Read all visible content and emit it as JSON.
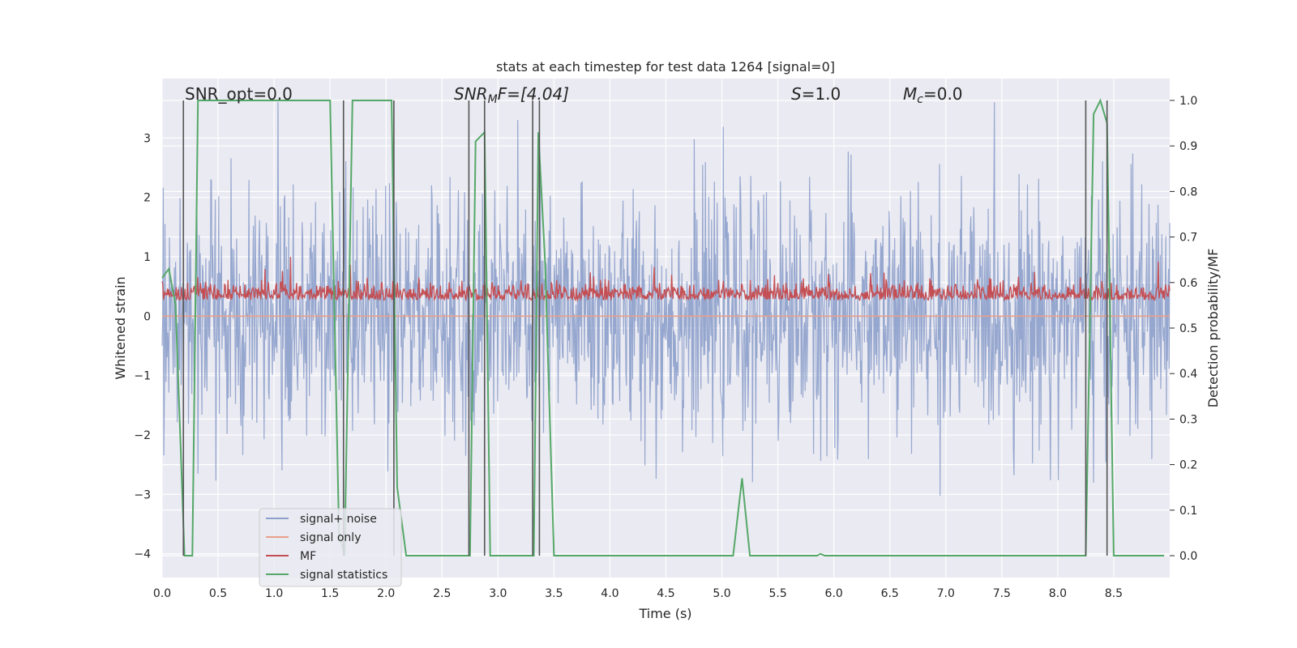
{
  "chart_data": {
    "type": "line",
    "title": "stats at each timestep for test data 1264 [signal=0]",
    "xlabel": "Time (s)",
    "ylabel_left": "Whitened strain",
    "ylabel_right": "Detection probability/MF",
    "xlim": [
      0.0,
      9.0
    ],
    "ylim_left": [
      -4.4,
      4.0
    ],
    "ylim_right": [
      -0.048,
      1.048
    ],
    "x_ticks": [
      "0.0",
      "0.5",
      "1.0",
      "1.5",
      "2.0",
      "2.5",
      "3.0",
      "3.5",
      "4.0",
      "4.5",
      "5.0",
      "5.5",
      "6.0",
      "6.5",
      "7.0",
      "7.5",
      "8.0",
      "8.5"
    ],
    "y_ticks_left": [
      "−4",
      "−3",
      "−2",
      "−1",
      "0",
      "1",
      "2",
      "3"
    ],
    "y_ticks_right": [
      "0.0",
      "0.1",
      "0.2",
      "0.3",
      "0.4",
      "0.5",
      "0.6",
      "0.7",
      "0.8",
      "0.9",
      "1.0"
    ],
    "grid": true,
    "legend_position": "lower-left",
    "annotations": {
      "snr_opt": "SNR_opt=0.0",
      "snr_mf_main": "SNR",
      "snr_mf_sub": "M",
      "snr_mf_rest": "F=[4.04]",
      "s_main": "S",
      "s_rest": "=1.0",
      "mc_main": "M",
      "mc_sub": "c",
      "mc_rest": "=0.0"
    },
    "series": [
      {
        "name": "signal+ noise",
        "color": "#8da0cb",
        "axis": "left",
        "description_values": "noise band spanning approx -2.5 to 2.5 with spikes to about -3.7 and 3.6",
        "envelope": {
          "typical_min": -1.8,
          "typical_max": 1.8,
          "spike_min": -3.7,
          "spike_max": 3.6
        }
      },
      {
        "name": "signal only",
        "color": "#e8a08a",
        "axis": "left",
        "x": [
          0.0,
          9.0
        ],
        "y": [
          0.0,
          0.0
        ]
      },
      {
        "name": "MF",
        "color": "#c44e52",
        "axis": "left",
        "envelope": {
          "typical_min": 0.05,
          "typical_max": 0.75,
          "spike_max": 1.0
        }
      },
      {
        "name": "signal statistics",
        "color": "#55a868",
        "axis": "right",
        "x": [
          0.0,
          0.06,
          0.12,
          0.2,
          0.27,
          0.32,
          1.5,
          1.58,
          1.63,
          1.7,
          1.78,
          2.05,
          2.1,
          2.18,
          2.75,
          2.8,
          2.88,
          2.93,
          3.32,
          3.36,
          3.42,
          3.5,
          5.1,
          5.18,
          5.25,
          5.85,
          5.88,
          5.92,
          8.25,
          8.32,
          8.38,
          8.44,
          8.5,
          8.95
        ],
        "y": [
          0.61,
          0.63,
          0.55,
          0.0,
          0.0,
          1.0,
          1.0,
          0.05,
          0.0,
          1.0,
          1.0,
          1.0,
          0.15,
          0.0,
          0.0,
          0.91,
          0.93,
          0.0,
          0.0,
          0.93,
          0.65,
          0.0,
          0.0,
          0.17,
          0.0,
          0.0,
          0.004,
          0.0,
          0.0,
          0.97,
          1.0,
          0.95,
          0.0,
          0.0
        ]
      }
    ],
    "vertical_markers_x": [
      0.19,
      1.62,
      2.07,
      2.74,
      2.88,
      3.31,
      3.37,
      8.25,
      8.44
    ]
  }
}
